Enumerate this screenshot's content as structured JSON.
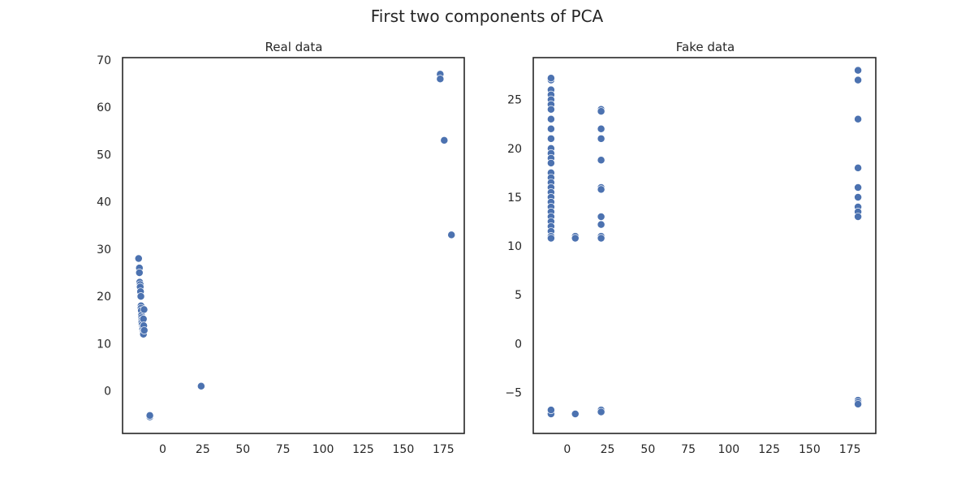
{
  "figure": {
    "title": "First two components of PCA"
  },
  "chart_data": [
    {
      "type": "scatter",
      "title": "Real data",
      "xlabel": "",
      "ylabel": "",
      "xlim": [
        -25,
        188
      ],
      "ylim": [
        -9,
        70.5
      ],
      "xticks": [
        0,
        25,
        50,
        75,
        100,
        125,
        150,
        175
      ],
      "yticks": [
        0,
        10,
        20,
        30,
        40,
        50,
        60,
        70
      ],
      "grid": false,
      "color": "#4c72b0",
      "series": [
        {
          "x": [
            -15,
            -14.5,
            -14.5,
            -14.3,
            -14,
            -14,
            -13.8,
            -13.6,
            -13.5,
            -13.5,
            -13.3,
            -13.2,
            -13.1,
            -13,
            -13,
            -12.8,
            -12.5,
            -12.5,
            -12.3,
            -12.2,
            -12,
            -12,
            -11.8,
            -11.6,
            -11.5,
            -8,
            -8,
            24,
            173,
            173,
            175.5,
            180
          ],
          "y": [
            28,
            26,
            25,
            23,
            22.5,
            22,
            21,
            20,
            18,
            17.5,
            17,
            16,
            15.5,
            15,
            14.5,
            14,
            13.5,
            13,
            12.5,
            12.2,
            12,
            15.2,
            13.8,
            17.2,
            12.8,
            -5.5,
            -5.2,
            1,
            67,
            66,
            53,
            33
          ]
        }
      ]
    },
    {
      "type": "scatter",
      "title": "Fake data",
      "xlabel": "",
      "ylabel": "",
      "xlim": [
        -21,
        191
      ],
      "ylim": [
        -9.2,
        29.3
      ],
      "xticks": [
        0,
        25,
        50,
        75,
        100,
        125,
        150,
        175
      ],
      "yticks": [
        -5,
        0,
        5,
        10,
        15,
        20,
        25
      ],
      "grid": false,
      "yticklabels": [
        "−5",
        "0",
        "5",
        "10",
        "15",
        "20",
        "25"
      ],
      "color": "#4c72b0",
      "series": [
        {
          "x": [
            -10,
            -10,
            -10,
            -10,
            -10,
            -10,
            -10,
            -10,
            -10,
            -10,
            -10,
            -10,
            -10,
            -10,
            -10,
            -10,
            -10,
            -10,
            -10,
            -10,
            -10,
            -10,
            -10,
            -10,
            -10,
            -10,
            -10,
            -10,
            -10,
            -10,
            -10,
            -10,
            5,
            5,
            5,
            21,
            21,
            21,
            21,
            21,
            21,
            21,
            21,
            21,
            21,
            21,
            21,
            21,
            180,
            180,
            180,
            180,
            180,
            180,
            180,
            180,
            180,
            180,
            180,
            180
          ],
          "y": [
            27,
            26,
            25.5,
            25,
            24.5,
            24,
            23,
            22,
            21,
            20,
            19.5,
            19,
            18.5,
            17.5,
            17,
            16.5,
            16,
            15.5,
            15,
            14.5,
            14,
            13.5,
            13,
            12.5,
            12,
            11.5,
            11,
            10.8,
            -7,
            -7.2,
            -6.8,
            27.2,
            11,
            10.8,
            -7.2,
            24,
            23.8,
            22,
            21,
            18.8,
            16,
            15.8,
            13,
            12.2,
            11,
            10.8,
            -6.8,
            -7,
            28,
            27,
            23,
            18,
            16,
            15,
            14,
            13.5,
            13,
            -5.8,
            -6,
            -6.2
          ]
        }
      ]
    }
  ]
}
